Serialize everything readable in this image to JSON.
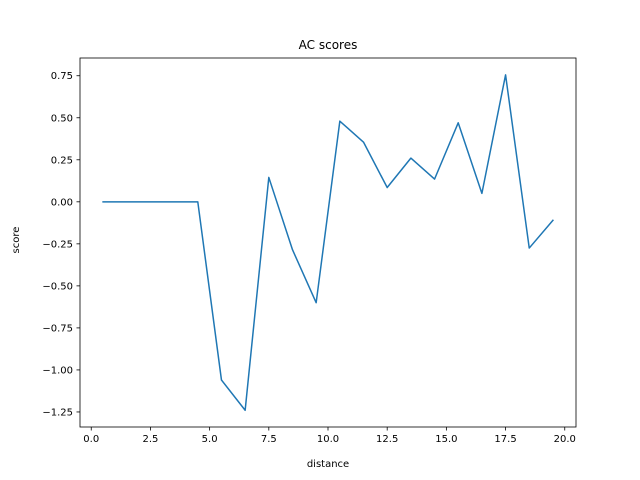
{
  "chart_data": {
    "type": "line",
    "title": "AC scores",
    "xlabel": "distance",
    "ylabel": "score",
    "xlim": [
      -0.475,
      20.475
    ],
    "ylim": [
      -1.3395,
      0.8555
    ],
    "xticks": [
      0.0,
      2.5,
      5.0,
      7.5,
      10.0,
      12.5,
      15.0,
      17.5,
      20.0
    ],
    "xtick_labels": [
      "0.0",
      "2.5",
      "5.0",
      "7.5",
      "10.0",
      "12.5",
      "15.0",
      "17.5",
      "20.0"
    ],
    "yticks": [
      -1.25,
      -1.0,
      -0.75,
      -0.5,
      -0.25,
      0.0,
      0.25,
      0.5,
      0.75
    ],
    "ytick_labels": [
      "−1.25",
      "−1.00",
      "−0.75",
      "−0.50",
      "−0.25",
      "0.00",
      "0.25",
      "0.50",
      "0.75"
    ],
    "grid": false,
    "series": [
      {
        "color": "#1f77b4",
        "x": [
          0.5,
          1.5,
          2.5,
          3.5,
          4.5,
          5.5,
          6.5,
          7.5,
          8.5,
          9.5,
          10.5,
          11.5,
          12.5,
          13.5,
          14.5,
          15.5,
          16.5,
          17.5,
          18.5,
          19.5
        ],
        "y": [
          0.0,
          0.0,
          0.0,
          0.0,
          0.0,
          -1.06,
          -1.24,
          0.145,
          -0.285,
          -0.6,
          0.48,
          0.355,
          0.085,
          0.26,
          0.135,
          0.47,
          0.05,
          0.755,
          -0.275,
          -0.11
        ]
      }
    ]
  }
}
